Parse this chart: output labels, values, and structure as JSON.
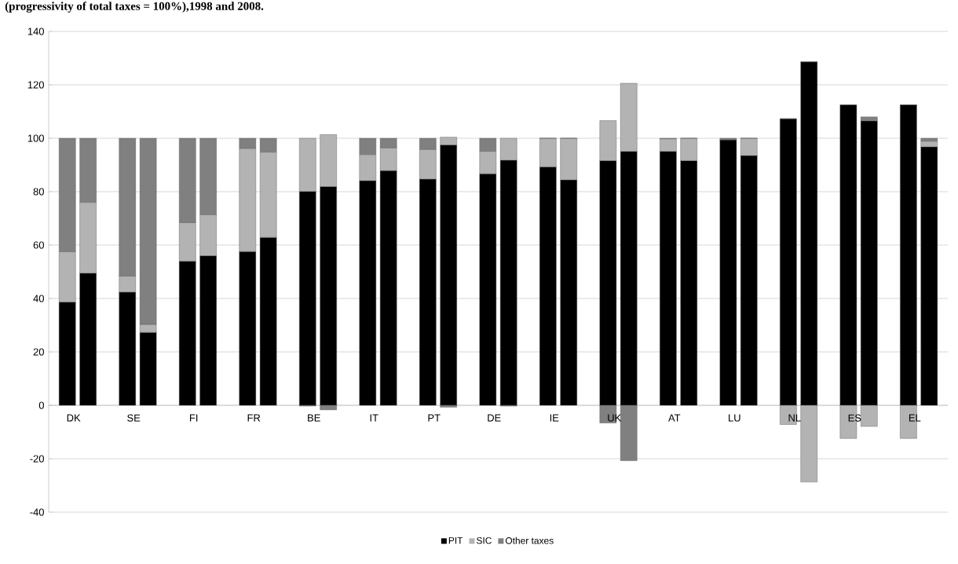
{
  "chart_data": {
    "type": "bar",
    "stacked": true,
    "title": "(progressivity of total taxes = 100%),1998 and 2008.",
    "categories": [
      "DK",
      null,
      "SE",
      null,
      "FI",
      null,
      "FR",
      null,
      "BE",
      null,
      "IT",
      null,
      "PT",
      null,
      "DE",
      null,
      "IE",
      null,
      "UK",
      null,
      "AT",
      null,
      "LU",
      null,
      "NL",
      null,
      "ES",
      null,
      "EL",
      null
    ],
    "series": [
      {
        "name": "PIT",
        "color": "#000000",
        "values": [
          38.7,
          49.5,
          42.4,
          27.3,
          54,
          56,
          57.6,
          62.9,
          80.1,
          81.9,
          84.1,
          87.9,
          84.7,
          97.5,
          86.7,
          91.8,
          89.3,
          84.4,
          91.6,
          95.1,
          95.1,
          91.6,
          99.4,
          93.5,
          107.3,
          128.6,
          112.5,
          106.5,
          112.5,
          96.8
        ]
      },
      {
        "name": "SIC",
        "color": "#b3b3b3",
        "values": [
          18.8,
          26.5,
          6,
          3,
          14.4,
          15.4,
          38.6,
          31.9,
          19.9,
          19.5,
          9.8,
          8.5,
          11.1,
          2.9,
          8.4,
          8.2,
          10.7,
          15.6,
          15,
          25.5,
          4.7,
          8.4,
          0,
          6.5,
          -7.2,
          -28.7,
          -12.4,
          -7.9,
          -12.4,
          2.1
        ]
      },
      {
        "name": "Other taxes",
        "color": "#808080",
        "values": [
          42.5,
          24,
          51.6,
          69.7,
          31.6,
          28.6,
          3.8,
          5.2,
          -0.3,
          -1.7,
          6.1,
          3.6,
          4.2,
          -0.7,
          4.9,
          -0.3,
          0,
          0,
          -6.6,
          -20.7,
          0.2,
          0,
          0.6,
          0,
          0,
          0,
          0,
          1.5,
          0,
          1.1
        ]
      }
    ],
    "ylim": [
      -40,
      140
    ],
    "yticks": [
      -40,
      -20,
      0,
      20,
      40,
      60,
      80,
      100,
      120,
      140
    ],
    "grid": "y",
    "legend": "bottom"
  }
}
